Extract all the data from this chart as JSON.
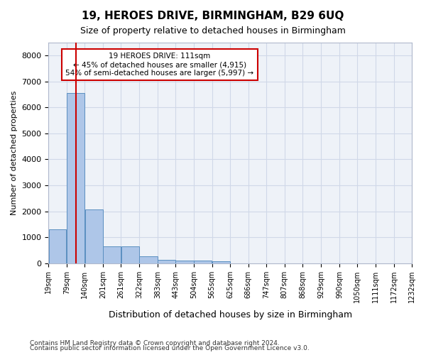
{
  "title": "19, HEROES DRIVE, BIRMINGHAM, B29 6UQ",
  "subtitle": "Size of property relative to detached houses in Birmingham",
  "xlabel": "Distribution of detached houses by size in Birmingham",
  "ylabel": "Number of detached properties",
  "footnote1": "Contains HM Land Registry data © Crown copyright and database right 2024.",
  "footnote2": "Contains public sector information licensed under the Open Government Licence v3.0.",
  "annotation_line1": "19 HEROES DRIVE: 111sqm",
  "annotation_line2": "← 45% of detached houses are smaller (4,915)",
  "annotation_line3": "54% of semi-detached houses are larger (5,997) →",
  "bar_color": "#aec6e8",
  "bar_edge_color": "#5a8fc0",
  "grid_color": "#d0d8e8",
  "bg_color": "#eef2f8",
  "property_line_color": "#cc0000",
  "property_line_x": 111,
  "bin_edges": [
    19,
    79,
    140,
    201,
    261,
    322,
    383,
    443,
    504,
    565,
    625,
    686,
    747,
    807,
    868,
    929,
    990,
    1050,
    1111,
    1172,
    1232
  ],
  "tick_labels": [
    "19sqm",
    "79sqm",
    "140sqm",
    "201sqm",
    "261sqm",
    "322sqm",
    "383sqm",
    "443sqm",
    "504sqm",
    "565sqm",
    "625sqm",
    "686sqm",
    "747sqm",
    "807sqm",
    "868sqm",
    "929sqm",
    "990sqm",
    "1050sqm",
    "1111sqm",
    "1172sqm",
    "1232sqm"
  ],
  "values": [
    1300,
    6550,
    2080,
    650,
    650,
    270,
    130,
    110,
    90,
    70,
    0,
    0,
    0,
    0,
    0,
    0,
    0,
    0,
    0,
    0
  ],
  "ylim": [
    0,
    8500
  ],
  "yticks": [
    0,
    1000,
    2000,
    3000,
    4000,
    5000,
    6000,
    7000,
    8000
  ]
}
